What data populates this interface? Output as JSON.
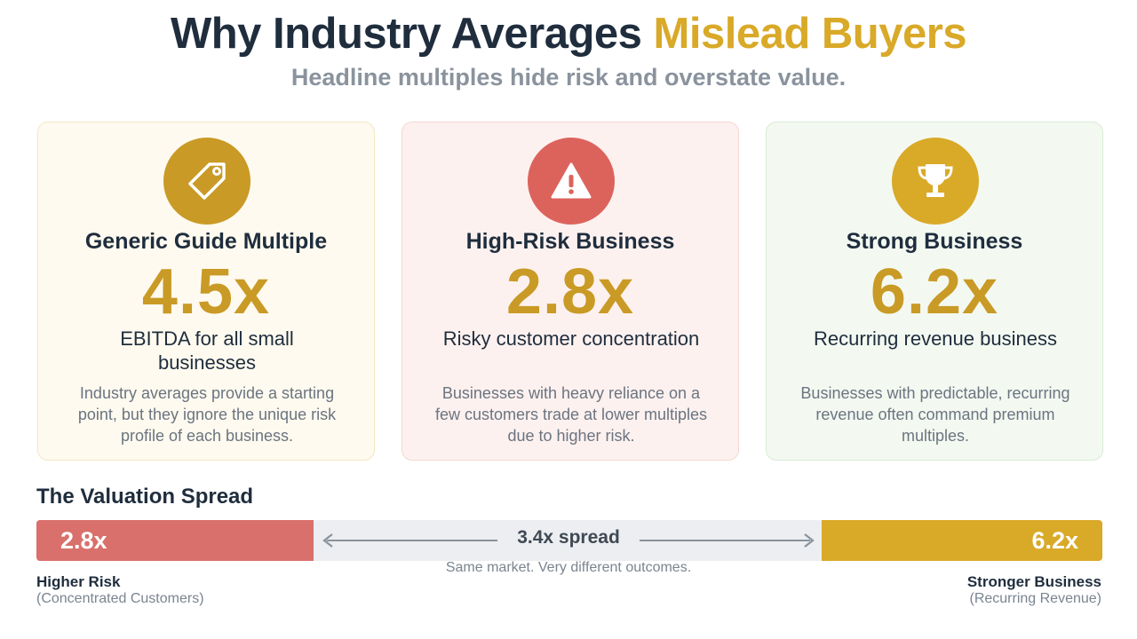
{
  "header": {
    "title_main": "Why Industry Averages",
    "title_accent": "Mislead Buyers",
    "subtitle": "Headline multiples hide risk and overstate value."
  },
  "cards": [
    {
      "icon": "tag-icon",
      "title": "Generic Guide Multiple",
      "multiple": "4.5x",
      "desc": "EBITDA for all small businesses",
      "body": "Industry averages provide a starting point, but they ignore the unique risk profile of each business."
    },
    {
      "icon": "warning-icon",
      "title": "High-Risk Business",
      "multiple": "2.8x",
      "desc": "Risky customer concentration",
      "body": "Businesses with heavy reliance on a few customers trade at lower multiples due to higher risk."
    },
    {
      "icon": "trophy-icon",
      "title": "Strong Business",
      "multiple": "6.2x",
      "desc": "Recurring revenue business",
      "body": "Businesses with predictable, recurring revenue often command premium multiples."
    }
  ],
  "spread": {
    "title": "The Valuation Spread",
    "low_value": "2.8x",
    "high_value": "6.2x",
    "low_fraction": 0.26,
    "high_fraction": 0.263,
    "spread_label": "3.4x spread",
    "caption": "Same market. Very different outcomes.",
    "left_label": "Higher Risk",
    "left_sub": "(Concentrated Customers)",
    "right_label": "Stronger Business",
    "right_sub": "(Recurring Revenue)"
  },
  "colors": {
    "accent": "#d9a928",
    "risk": "#d9706b",
    "text": "#1f2d3d"
  }
}
